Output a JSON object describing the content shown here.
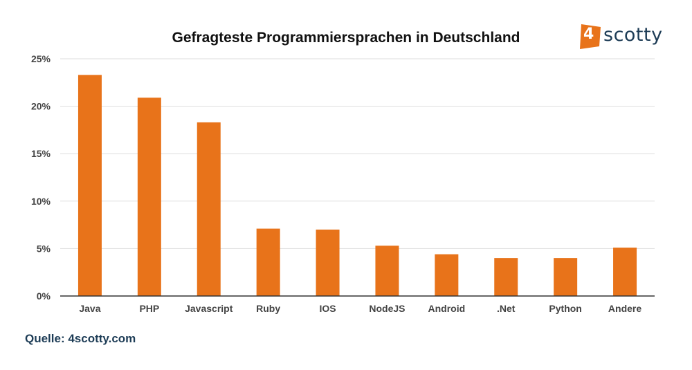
{
  "brand": {
    "digit": "4",
    "name": "scotty",
    "accent_color": "#e8731a",
    "text_color": "#1d3c56"
  },
  "source": "Quelle: 4scotty.com",
  "chart_data": {
    "type": "bar",
    "title": "Gefragteste Programmiersprachen in Deutschland",
    "categories": [
      "Java",
      "PHP",
      "Javascript",
      "Ruby",
      "IOS",
      "NodeJS",
      "Android",
      ".Net",
      "Python",
      "Andere"
    ],
    "values": [
      23.3,
      20.9,
      18.3,
      7.1,
      7.0,
      5.3,
      4.4,
      4.0,
      4.0,
      5.1
    ],
    "unit": "%",
    "ylim": [
      0,
      25
    ],
    "yticks": [
      0,
      5,
      10,
      15,
      20,
      25
    ],
    "ytick_labels": [
      "0%",
      "5%",
      "10%",
      "15%",
      "20%",
      "25%"
    ],
    "xlabel": "",
    "ylabel": "",
    "bar_color": "#e8731a",
    "grid": true,
    "legend": "none"
  }
}
